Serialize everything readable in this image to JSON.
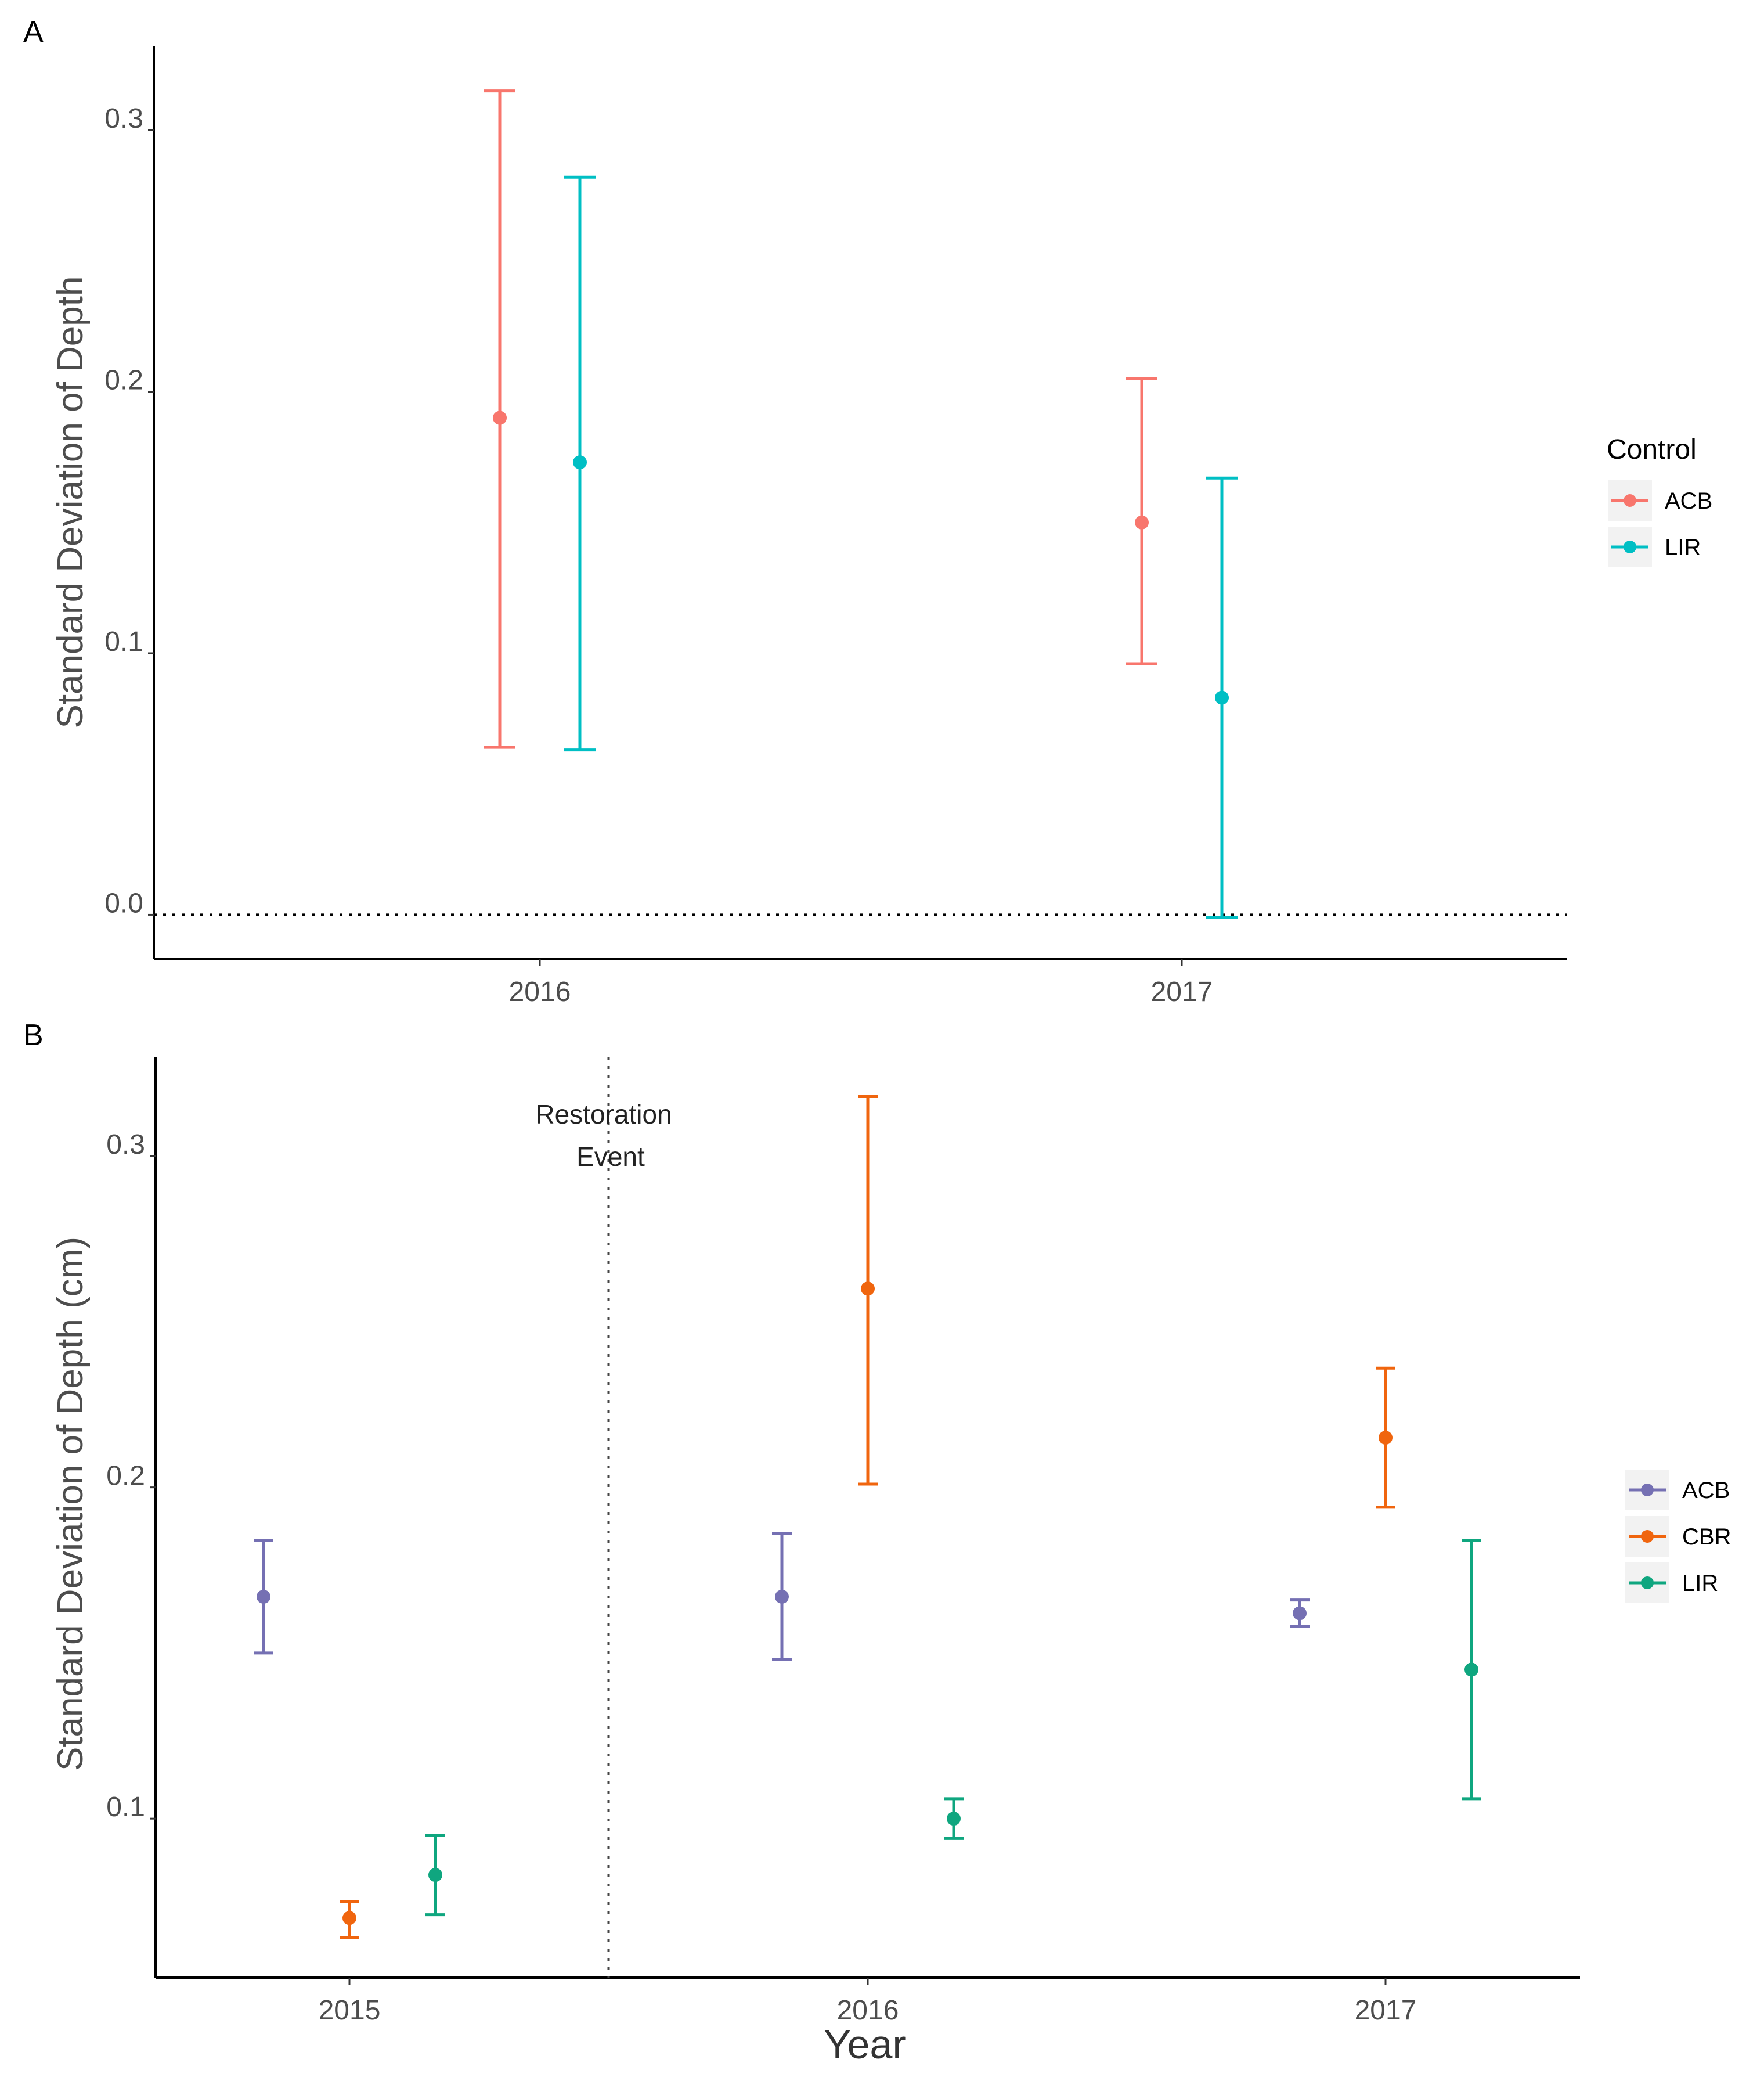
{
  "chart_data": [
    {
      "panel_label": "A",
      "type": "scatter",
      "subtype": "point-errorbar",
      "ylabel": "Standard Deviation of Depth",
      "xlabel": "",
      "categories": [
        "2016",
        "2017"
      ],
      "ylim": [
        -0.017,
        0.332
      ],
      "yticks": [
        "0.0",
        "0.1",
        "0.2",
        "0.3"
      ],
      "grid": false,
      "reference_line": {
        "y": 0.0,
        "style": "dotted"
      },
      "legend": {
        "title": "Control",
        "position": "right"
      },
      "series": [
        {
          "name": "ACB",
          "color": "#F8766D",
          "points": [
            {
              "x": "2016",
              "y": 0.19,
              "lower": 0.064,
              "upper": 0.315
            },
            {
              "x": "2017",
              "y": 0.15,
              "lower": 0.096,
              "upper": 0.205
            }
          ]
        },
        {
          "name": "LIR",
          "color": "#00BFC4",
          "points": [
            {
              "x": "2016",
              "y": 0.173,
              "lower": 0.063,
              "upper": 0.282
            },
            {
              "x": "2017",
              "y": 0.083,
              "lower": -0.001,
              "upper": 0.167
            }
          ]
        }
      ]
    },
    {
      "panel_label": "B",
      "type": "scatter",
      "subtype": "point-errorbar",
      "ylabel": "Standard Deviation of Depth (cm)",
      "xlabel": "Year",
      "categories": [
        "2015",
        "2016",
        "2017"
      ],
      "ylim": [
        0.052,
        0.33
      ],
      "yticks": [
        "0.1",
        "0.2",
        "0.3"
      ],
      "grid": false,
      "annotation": {
        "lines": [
          "Restoration",
          "Event"
        ],
        "x_between": [
          "2015",
          "2016"
        ],
        "line_style": "dotted"
      },
      "legend": {
        "title": "",
        "position": "right"
      },
      "series": [
        {
          "name": "ACB",
          "color": "#7570B3",
          "points": [
            {
              "x": "2015",
              "y": 0.167,
              "lower": 0.15,
              "upper": 0.184
            },
            {
              "x": "2016",
              "y": 0.167,
              "lower": 0.148,
              "upper": 0.186
            },
            {
              "x": "2017",
              "y": 0.162,
              "lower": 0.158,
              "upper": 0.166
            }
          ]
        },
        {
          "name": "CBR",
          "color": "#F0650E",
          "points": [
            {
              "x": "2015",
              "y": 0.07,
              "lower": 0.064,
              "upper": 0.075
            },
            {
              "x": "2016",
              "y": 0.26,
              "lower": 0.201,
              "upper": 0.318
            },
            {
              "x": "2017",
              "y": 0.215,
              "lower": 0.194,
              "upper": 0.236
            }
          ]
        },
        {
          "name": "LIR",
          "color": "#0FA67F",
          "points": [
            {
              "x": "2015",
              "y": 0.083,
              "lower": 0.071,
              "upper": 0.095
            },
            {
              "x": "2016",
              "y": 0.1,
              "lower": 0.094,
              "upper": 0.106
            },
            {
              "x": "2017",
              "y": 0.145,
              "lower": 0.106,
              "upper": 0.184
            }
          ]
        }
      ]
    }
  ]
}
